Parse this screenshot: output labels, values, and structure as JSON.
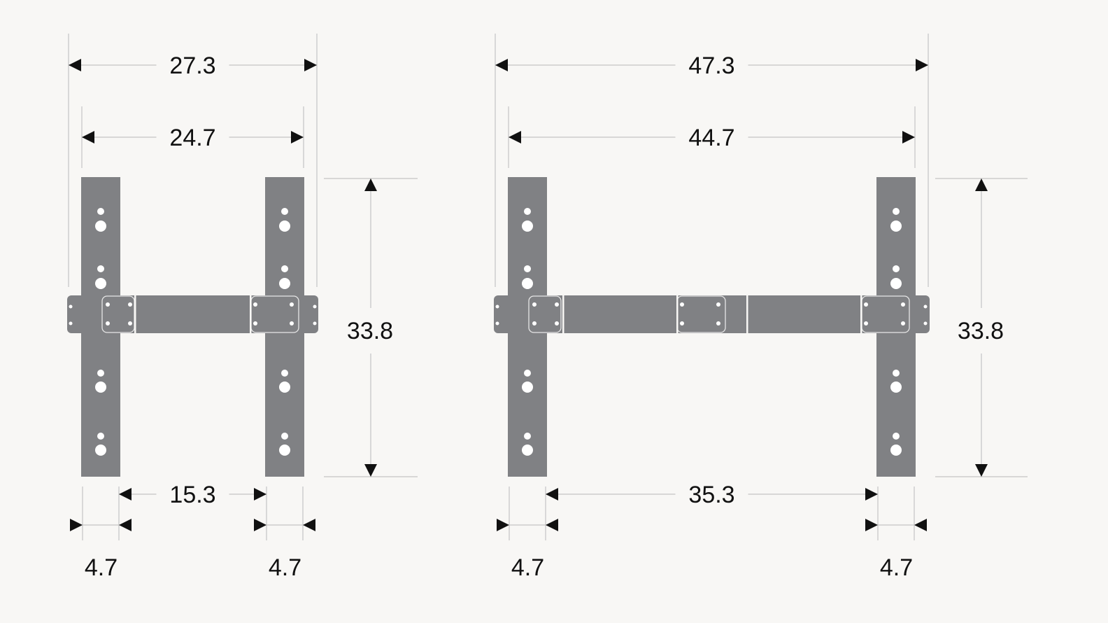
{
  "colors": {
    "background": "#f8f7f5",
    "bracket": "#808184",
    "dimension_line": "#c4c4c4",
    "arrow": "#111111"
  },
  "diagrams": [
    {
      "overall_width": "27.3",
      "inner_width": "24.7",
      "height": "33.8",
      "gap": "15.3",
      "left_upright_width": "4.7",
      "right_upright_width": "4.7"
    },
    {
      "overall_width": "47.3",
      "inner_width": "44.7",
      "height": "33.8",
      "gap": "35.3",
      "left_upright_width": "4.7",
      "right_upright_width": "4.7"
    }
  ]
}
